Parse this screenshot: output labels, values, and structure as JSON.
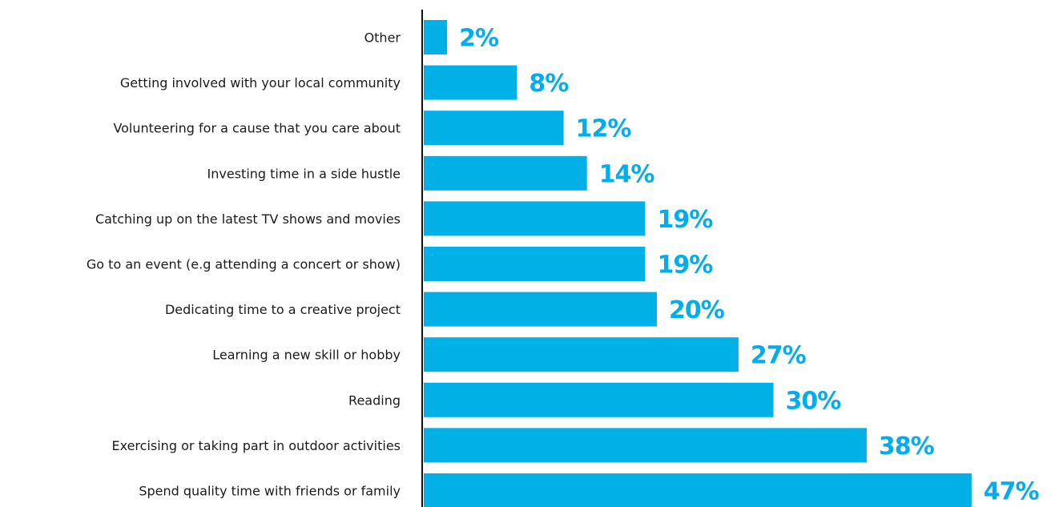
{
  "colors": {
    "bar": "#00B0E6",
    "value_label": "#00AEEF",
    "axis": "#111111",
    "category_text": "#1a1a1a"
  },
  "chart_data": {
    "type": "bar",
    "orientation": "horizontal",
    "title": "",
    "xlabel": "",
    "ylabel": "",
    "categories": [
      "Other",
      "Getting involved with your local community",
      "Volunteering for a cause that you care about",
      "Investing time in a side hustle",
      "Catching up on the latest TV shows and movies",
      "Go to an event (e.g attending a concert or show)",
      "Dedicating time to a creative project",
      "Learning a new skill or hobby",
      "Reading",
      "Exercising or taking part in outdoor activities",
      "Spend quality time with friends or family"
    ],
    "values": [
      2,
      8,
      12,
      14,
      19,
      19,
      20,
      27,
      30,
      38,
      47
    ],
    "value_labels": [
      "2%",
      "8%",
      "12%",
      "14%",
      "19%",
      "19%",
      "20%",
      "27%",
      "30%",
      "38%",
      "47%"
    ],
    "unit": "%",
    "xlim": [
      0,
      47
    ],
    "grid": false,
    "legend": "none"
  }
}
